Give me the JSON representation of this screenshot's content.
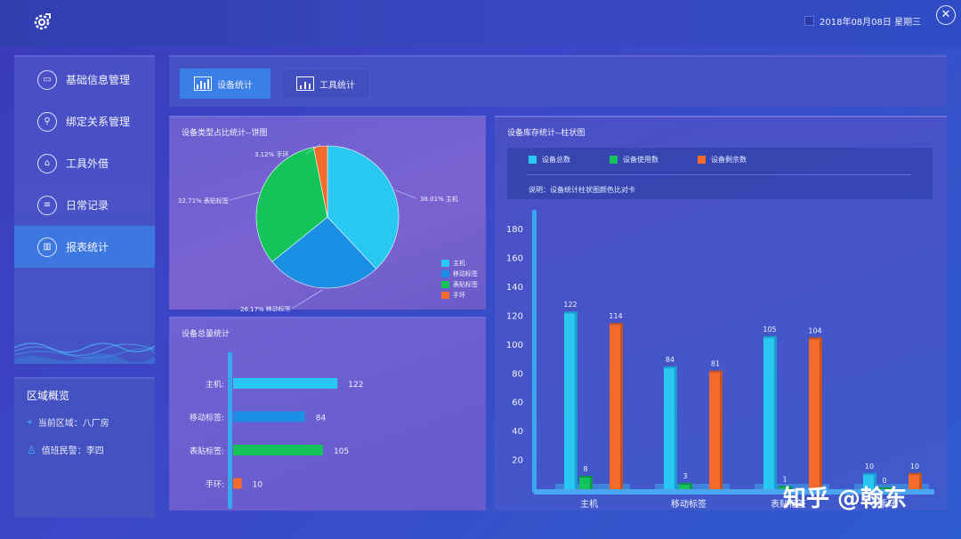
{
  "header": {
    "datetime": "2018年08月08日 星期三",
    "close_icon": "close-circle-icon",
    "logo_icon": "gear-wrench-icon"
  },
  "sidebar": {
    "items": [
      {
        "label": "基础信息管理",
        "icon": "monitor-icon"
      },
      {
        "label": "绑定关系管理",
        "icon": "link-icon"
      },
      {
        "label": "工具外借",
        "icon": "box-icon"
      },
      {
        "label": "日常记录",
        "icon": "notebook-icon"
      },
      {
        "label": "报表统计",
        "icon": "chart-icon",
        "active": true
      }
    ]
  },
  "area": {
    "title": "区域概览",
    "region_label": "当前区域：八厂房",
    "officer_label": "值班民警：李四"
  },
  "tabs": [
    {
      "label": "设备统计",
      "active": true
    },
    {
      "label": "工具统计",
      "active": false
    }
  ],
  "colors": {
    "host": "#29c8f2",
    "mobile": "#1a8fe3",
    "sticker": "#14c45a",
    "band": "#f46a2a"
  },
  "watermark": "知乎 @翰东",
  "chart_data": [
    {
      "type": "pie",
      "title": "设备类型占比统计--饼图",
      "slices": [
        {
          "name": "主机",
          "value": 38.01,
          "label": "38.01% 主机"
        },
        {
          "name": "移动标签",
          "value": 26.17,
          "label": "26.17% 移动标签"
        },
        {
          "name": "表贴标签",
          "value": 32.71,
          "label": "32.71% 表贴标签"
        },
        {
          "name": "手环",
          "value": 3.12,
          "label": "3.12% 手环"
        }
      ],
      "legend": [
        "主机",
        "移动标签",
        "表贴标签",
        "手环"
      ],
      "legend_position": "right"
    },
    {
      "type": "bar",
      "orientation": "horizontal",
      "title": "设备总量统计",
      "categories": [
        "主机:",
        "移动标签:",
        "表贴标签:",
        "手环:"
      ],
      "values": [
        122,
        84,
        105,
        10
      ]
    },
    {
      "type": "bar",
      "title": "设备库存统计--柱状图",
      "categories": [
        "主机",
        "移动标签",
        "表贴标签",
        "手环"
      ],
      "series": [
        {
          "name": "设备总数",
          "values": [
            122,
            84,
            105,
            10
          ]
        },
        {
          "name": "设备使用数",
          "values": [
            8,
            3,
            1,
            0
          ]
        },
        {
          "name": "设备剩余数",
          "values": [
            114,
            81,
            104,
            10
          ]
        }
      ],
      "note": "说明：设备统计柱状图颜色比对卡",
      "yticks": [
        20,
        40,
        60,
        80,
        100,
        120,
        140,
        160,
        180
      ],
      "ylim": [
        0,
        190
      ]
    }
  ]
}
